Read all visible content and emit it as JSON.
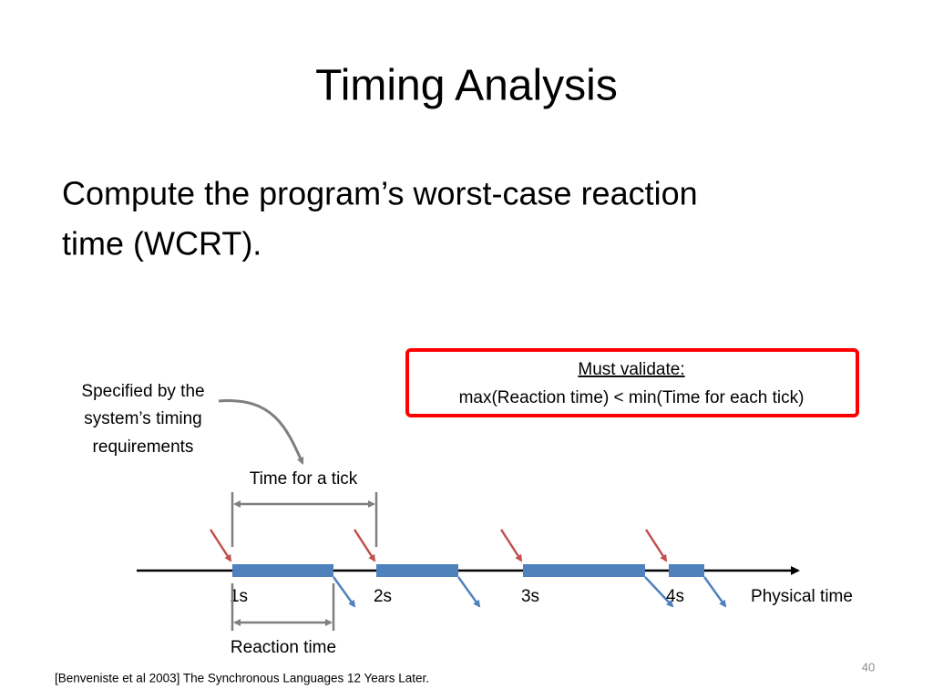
{
  "title": "Timing Analysis",
  "body_lines": [
    "Compute the program’s worst-case reaction",
    "time (WCRT)."
  ],
  "diagram": {
    "spec_note_lines": [
      "Specified by the",
      "system’s timing",
      "requirements"
    ],
    "tick_span_label": "Time for a tick",
    "callout": {
      "heading": "Must validate:",
      "text": "max(Reaction time) < min(Time for each tick)"
    },
    "ticks": [
      "1s",
      "2s",
      "3s",
      "4s"
    ],
    "axis_label": "Physical time",
    "reaction_label": "Reaction time"
  },
  "citation": "[Benveniste et al 2003] The Synchronous Languages 12 Years Later.",
  "page_number": "40"
}
